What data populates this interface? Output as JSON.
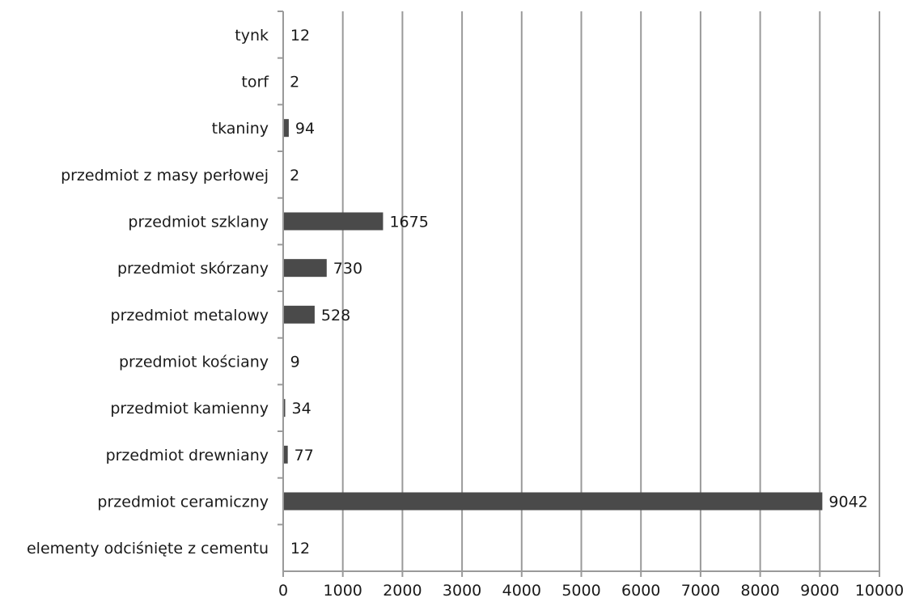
{
  "chart_data": {
    "type": "bar",
    "orientation": "horizontal",
    "title": "",
    "xlabel": "",
    "ylabel": "",
    "categories": [
      "elementy odciśnięte z cementu",
      "przedmiot ceramiczny",
      "przedmiot drewniany",
      "przedmiot kamienny",
      "przedmiot kościany",
      "przedmiot metalowy",
      "przedmiot skórzany",
      "przedmiot szklany",
      "przedmiot z masy perłowej",
      "tkaniny",
      "torf",
      "tynk"
    ],
    "values": [
      12,
      9042,
      77,
      34,
      9,
      528,
      730,
      1675,
      2,
      94,
      2,
      12
    ],
    "value_labels": [
      "12",
      "9042",
      "77",
      "34",
      "9",
      "528",
      "730",
      "1675",
      "2",
      "94",
      "2",
      "12"
    ],
    "xlim": [
      0,
      10000
    ],
    "x_ticks": [
      0,
      1000,
      2000,
      3000,
      4000,
      5000,
      6000,
      7000,
      8000,
      9000,
      10000
    ],
    "x_tick_labels": [
      "0",
      "1000",
      "2000",
      "3000",
      "4000",
      "5000",
      "6000",
      "7000",
      "8000",
      "9000",
      "10000"
    ],
    "grid": true,
    "legend": "none",
    "bar_color": "#4a4a4a",
    "grid_color": "#9a9a9a"
  }
}
